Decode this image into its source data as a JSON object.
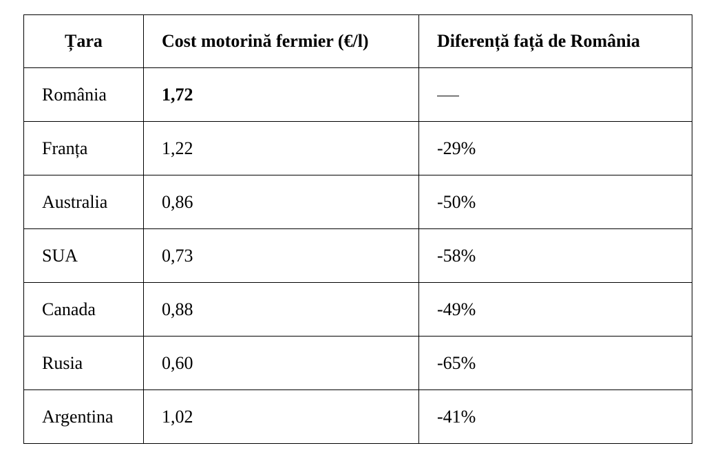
{
  "table": {
    "headers": [
      "Țara",
      "Cost motorină fermier (€/l)",
      "Diferență față de România"
    ],
    "rows": [
      {
        "country": "România",
        "cost": "1,72",
        "diff": "—",
        "highlight": true
      },
      {
        "country": "Franța",
        "cost": "1,22",
        "diff": "-29%"
      },
      {
        "country": "Australia",
        "cost": "0,86",
        "diff": "-50%"
      },
      {
        "country": "SUA",
        "cost": "0,73",
        "diff": "-58%"
      },
      {
        "country": "Canada",
        "cost": "0,88",
        "diff": "-49%"
      },
      {
        "country": "Rusia",
        "cost": "0,60",
        "diff": "-65%"
      },
      {
        "country": "Argentina",
        "cost": "1,02",
        "diff": "-41%"
      }
    ]
  }
}
